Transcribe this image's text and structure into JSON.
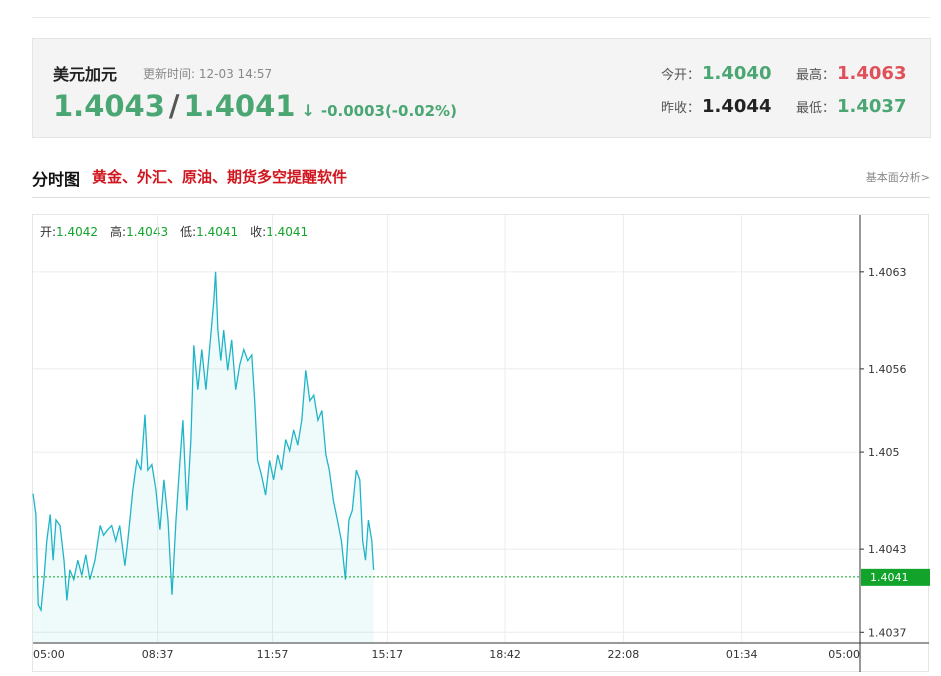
{
  "header": {
    "name": "美元加元",
    "update_label": "更新时间:",
    "update_time": "12-03 14:57",
    "bid": "1.4043",
    "separator": "/",
    "ask": "1.4041",
    "arrow": "↓",
    "change": "-0.0003(-0.02%)",
    "stats": [
      {
        "label": "今开：",
        "value": "1.4040"
      },
      {
        "label": "最高：",
        "value": "1.4063"
      },
      {
        "label": "昨收：",
        "value": "1.4044"
      },
      {
        "label": "最低：",
        "value": "1.4037"
      }
    ]
  },
  "section": {
    "title": "分时图",
    "promo": "黄金、外汇、原油、期货多空提醒软件",
    "link": "基本面分析>"
  },
  "chart_data": {
    "type": "line",
    "summary": [
      {
        "label": "开:",
        "value": "1.4042"
      },
      {
        "label": "高:",
        "value": "1.4043"
      },
      {
        "label": "低:",
        "value": "1.4041"
      },
      {
        "label": "收:",
        "value": "1.4041"
      }
    ],
    "x": [
      0,
      5,
      9,
      14,
      19,
      24,
      30,
      35,
      40,
      47,
      54,
      59,
      64,
      71,
      78,
      85,
      92,
      99,
      108,
      117,
      123,
      130,
      137,
      144,
      151,
      160,
      165,
      174,
      181,
      188,
      195,
      200,
      207,
      214,
      221,
      228,
      235,
      242,
      249,
      256,
      261,
      268,
      275,
      280,
      287,
      294,
      301,
      308,
      315,
      318,
      322,
      327,
      332,
      339,
      346,
      353,
      360,
      367,
      374,
      381,
      386,
      391,
      398,
      405,
      412,
      419,
      426,
      433,
      440,
      447,
      454,
      461,
      468,
      475,
      482,
      489,
      496,
      503,
      510,
      516,
      523,
      530,
      537,
      544,
      550,
      556,
      563,
      569,
      574,
      579,
      584,
      590,
      593
    ],
    "series": [
      {
        "color": "#1fb5c8",
        "values": [
          1.4047,
          1.40455,
          1.4039,
          1.40386,
          1.40408,
          1.40436,
          1.40455,
          1.40422,
          1.40451,
          1.40447,
          1.40422,
          1.40393,
          1.40415,
          1.40408,
          1.40422,
          1.40411,
          1.40426,
          1.40408,
          1.40422,
          1.40447,
          1.4044,
          1.40444,
          1.40447,
          1.40436,
          1.40447,
          1.40418,
          1.40436,
          1.40473,
          1.40494,
          1.40487,
          1.40527,
          1.40487,
          1.40491,
          1.40473,
          1.40444,
          1.4048,
          1.40451,
          1.40397,
          1.40451,
          1.40494,
          1.40523,
          1.40458,
          1.40509,
          1.40577,
          1.40545,
          1.40574,
          1.40545,
          1.40577,
          1.4061,
          1.4063,
          1.40588,
          1.40566,
          1.40588,
          1.40559,
          1.40581,
          1.40545,
          1.40563,
          1.40574,
          1.40566,
          1.4057,
          1.40537,
          1.40494,
          1.40483,
          1.40469,
          1.40494,
          1.4048,
          1.40498,
          1.40487,
          1.40509,
          1.40501,
          1.40516,
          1.40505,
          1.40523,
          1.40559,
          1.40537,
          1.40541,
          1.40523,
          1.4053,
          1.40498,
          1.40487,
          1.40465,
          1.40451,
          1.40436,
          1.40408,
          1.40451,
          1.40458,
          1.40487,
          1.4048,
          1.40436,
          1.40422,
          1.40451,
          1.40436,
          1.40415
        ]
      }
    ],
    "reference_line": {
      "value": 1.4041,
      "color": "#11a32a"
    },
    "xlim": [
      0,
      1440
    ],
    "xticks": [
      {
        "value": 0,
        "label": "05:00"
      },
      {
        "value": 217,
        "label": "08:37"
      },
      {
        "value": 417,
        "label": "11:57"
      },
      {
        "value": 617,
        "label": "15:17"
      },
      {
        "value": 822,
        "label": "18:42"
      },
      {
        "value": 1028,
        "label": "22:08"
      },
      {
        "value": 1234,
        "label": "01:34"
      },
      {
        "value": 1440,
        "label": "05:00"
      }
    ],
    "ylim": [
      1.40363,
      1.40671
    ],
    "yticks": [
      1.4037,
      1.4043,
      1.405,
      1.4056,
      1.4063
    ],
    "grid": true
  }
}
